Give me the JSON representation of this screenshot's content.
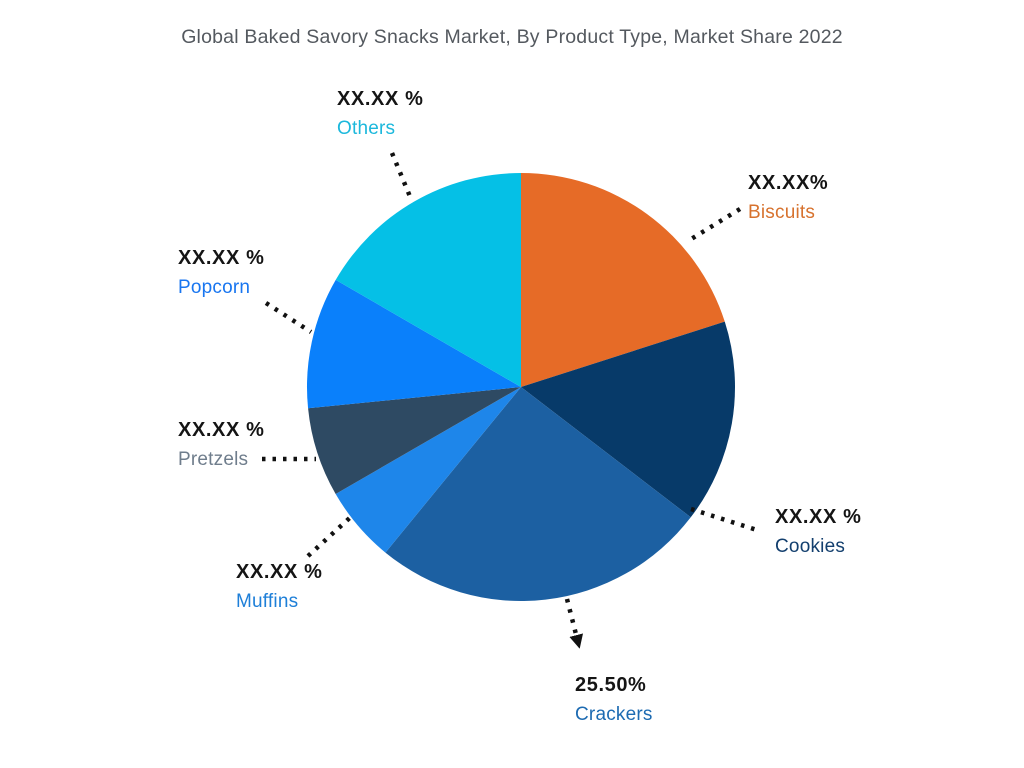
{
  "title": "Global Baked Savory Snacks Market, By Product Type, Market Share 2022",
  "chart_data": {
    "type": "pie",
    "title": "Global Baked Savory Snacks Market, By Product Type, Market Share 2022",
    "unit": "%",
    "direction": "clockwise",
    "start_angle_deg": 0,
    "legend_position": "callout-labels",
    "slices": [
      {
        "name": "Biscuits",
        "value_label": "XX.XX%",
        "share_pct_est": 20.06,
        "color": "#e66b27",
        "label_color": "#d7722e"
      },
      {
        "name": "Cookies",
        "value_label": "XX.XX %",
        "share_pct_est": 15.36,
        "color": "#073a69",
        "label_color": "#133f6e"
      },
      {
        "name": "Crackers",
        "value_label": "25.50%",
        "share_pct_est": 25.5,
        "color": "#1c60a2",
        "label_color": "#1d6bb2"
      },
      {
        "name": "Muffins",
        "value_label": "XX.XX %",
        "share_pct_est": 5.75,
        "color": "#1e86ea",
        "label_color": "#1e7fd8"
      },
      {
        "name": "Pretzels",
        "value_label": "XX.XX %",
        "share_pct_est": 6.75,
        "color": "#2e4a63",
        "label_color": "#6f7d8c"
      },
      {
        "name": "Popcorn",
        "value_label": "XX.XX %",
        "share_pct_est": 9.92,
        "color": "#0a80fb",
        "label_color": "#1976f0"
      },
      {
        "name": "Others",
        "value_label": "XX.XX %",
        "share_pct_est": 16.66,
        "color": "#05c0e6",
        "label_color": "#1cb8dc"
      }
    ]
  }
}
